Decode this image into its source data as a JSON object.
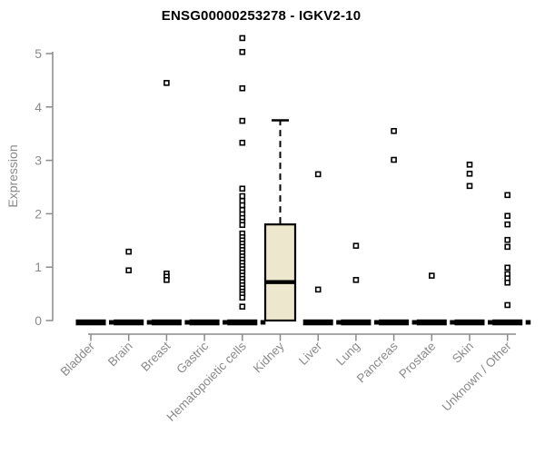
{
  "title": "ENSG00000253278 - IGKV2-10",
  "y_axis": {
    "label": "Expression",
    "tick_labels": [
      "0",
      "1",
      "2",
      "3",
      "4",
      "5"
    ]
  },
  "colors": {
    "title_text": "#000000",
    "axis_line": "#8a8a8a",
    "axis_text": "#8a8a8a",
    "box_fill": "#ece7cd",
    "box_stroke": "#000000",
    "zero_bar": "#000000",
    "outlier_fill": "#ffffff",
    "outlier_stroke": "#000000"
  },
  "chart_data": {
    "type": "boxplot",
    "title": "ENSG00000253278 - IGKV2-10",
    "xlabel": "",
    "ylabel": "Expression",
    "ylim": [
      0,
      5.3
    ],
    "yticks": [
      0,
      1,
      2,
      3,
      4,
      5
    ],
    "grid": false,
    "legend": "none",
    "categories": [
      "Bladder",
      "Brain",
      "Breast",
      "Gastric",
      "Hematopoietic cells",
      "Kidney",
      "Liver",
      "Lung",
      "Pancreas",
      "Prostate",
      "Skin",
      "Unknown / Other"
    ],
    "boxes": [
      {
        "category": "Bladder",
        "q1": 0,
        "median": 0,
        "q3": 0,
        "whisker_low": 0,
        "whisker_high": 0,
        "collapsed": true,
        "outliers": []
      },
      {
        "category": "Brain",
        "q1": 0,
        "median": 0,
        "q3": 0,
        "whisker_low": 0,
        "whisker_high": 0,
        "collapsed": true,
        "outliers": [
          1.29,
          0.94
        ]
      },
      {
        "category": "Breast",
        "q1": 0,
        "median": 0,
        "q3": 0,
        "whisker_low": 0,
        "whisker_high": 0,
        "collapsed": true,
        "outliers": [
          4.45,
          0.88,
          0.82,
          0.76
        ]
      },
      {
        "category": "Gastric",
        "q1": 0,
        "median": 0,
        "q3": 0,
        "whisker_low": 0,
        "whisker_high": 0,
        "collapsed": true,
        "outliers": []
      },
      {
        "category": "Hematopoietic cells",
        "q1": 0,
        "median": 0,
        "q3": 0,
        "whisker_low": 0,
        "whisker_high": 0,
        "collapsed": true,
        "outliers": [
          5.29,
          5.03,
          4.35,
          3.74,
          3.33,
          2.47,
          2.33,
          2.24,
          2.16,
          2.07,
          1.99,
          1.92,
          1.85,
          1.79,
          1.63,
          1.56,
          1.5,
          1.44,
          1.38,
          1.32,
          1.26,
          1.2,
          1.14,
          1.08,
          1.02,
          0.96,
          0.9,
          0.84,
          0.78,
          0.72,
          0.66,
          0.6,
          0.54,
          0.49,
          0.43,
          0.26
        ]
      },
      {
        "category": "Kidney",
        "q1": 0,
        "median": 0.72,
        "q3": 1.8,
        "whisker_low": 0,
        "whisker_high": 3.75,
        "collapsed": false,
        "outliers": []
      },
      {
        "category": "Liver",
        "q1": 0,
        "median": 0,
        "q3": 0,
        "whisker_low": 0,
        "whisker_high": 0,
        "collapsed": true,
        "outliers": [
          2.74,
          0.58
        ]
      },
      {
        "category": "Lung",
        "q1": 0,
        "median": 0,
        "q3": 0,
        "whisker_low": 0,
        "whisker_high": 0,
        "collapsed": true,
        "outliers": [
          1.4,
          0.76
        ]
      },
      {
        "category": "Pancreas",
        "q1": 0,
        "median": 0,
        "q3": 0,
        "whisker_low": 0,
        "whisker_high": 0,
        "collapsed": true,
        "outliers": [
          3.55,
          3.01
        ]
      },
      {
        "category": "Prostate",
        "q1": 0,
        "median": 0,
        "q3": 0,
        "whisker_low": 0,
        "whisker_high": 0,
        "collapsed": true,
        "outliers": [
          0.84
        ]
      },
      {
        "category": "Skin",
        "q1": 0,
        "median": 0,
        "q3": 0,
        "whisker_low": 0,
        "whisker_high": 0,
        "collapsed": true,
        "outliers": [
          2.92,
          2.75,
          2.52
        ]
      },
      {
        "category": "Unknown / Other",
        "q1": 0,
        "median": 0,
        "q3": 0,
        "whisker_low": 0,
        "whisker_high": 0,
        "collapsed": true,
        "outliers": [
          2.35,
          1.96,
          1.8,
          1.51,
          1.38,
          0.99,
          0.87,
          0.79,
          0.71,
          0.29
        ]
      }
    ]
  }
}
